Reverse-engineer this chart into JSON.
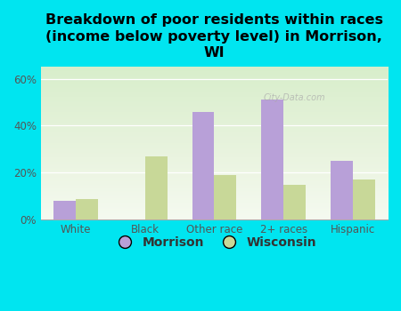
{
  "title": "Breakdown of poor residents within races\n(income below poverty level) in Morrison,\nWI",
  "categories": [
    "White",
    "Black",
    "Other race",
    "2+ races",
    "Hispanic"
  ],
  "morrison_values": [
    8,
    0,
    46,
    51,
    25
  ],
  "wisconsin_values": [
    9,
    27,
    19,
    15,
    17
  ],
  "morrison_color": "#b8a0d8",
  "wisconsin_color": "#c8d898",
  "background_color": "#00e5f0",
  "yticks": [
    0,
    20,
    40,
    60
  ],
  "ylim": [
    0,
    65
  ],
  "bar_width": 0.32,
  "legend_labels": [
    "Morrison",
    "Wisconsin"
  ],
  "title_fontsize": 11.5,
  "tick_fontsize": 8.5,
  "legend_fontsize": 10,
  "watermark": "City-Data.com"
}
